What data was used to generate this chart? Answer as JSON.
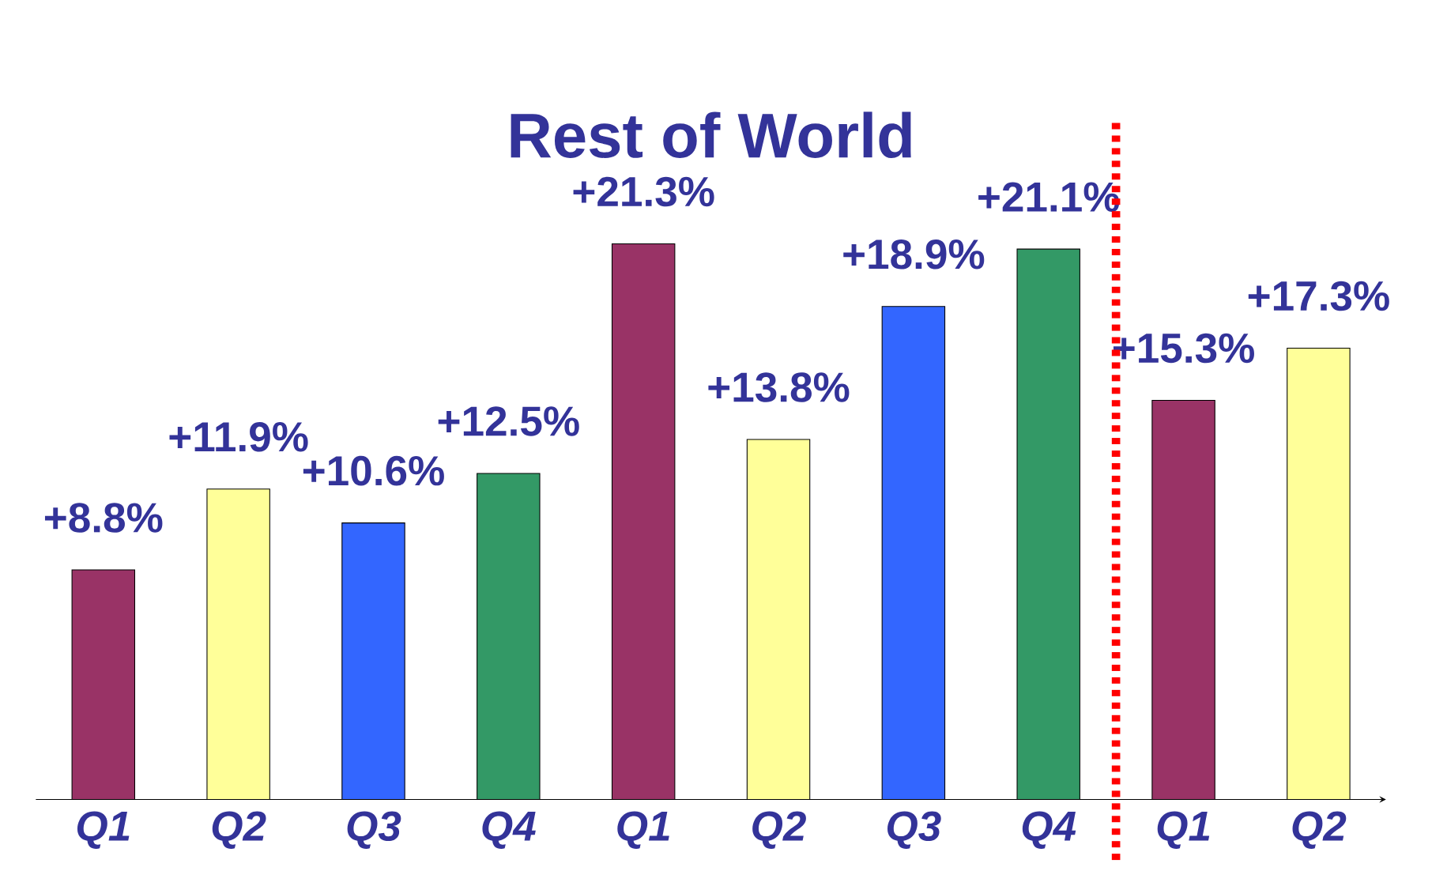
{
  "chart_data": {
    "type": "bar",
    "title": "Rest of World",
    "categories": [
      "Q1",
      "Q2",
      "Q3",
      "Q4",
      "Q1",
      "Q2",
      "Q3",
      "Q4",
      "Q1",
      "Q2"
    ],
    "values": [
      8.8,
      11.9,
      10.6,
      12.5,
      21.3,
      13.8,
      18.9,
      21.1,
      15.3,
      17.3
    ],
    "colors": [
      "#993366",
      "#ffff99",
      "#3366ff",
      "#339966",
      "#993366",
      "#ffff99",
      "#3366ff",
      "#339966",
      "#993366",
      "#ffff99"
    ],
    "value_labels": [
      "+8.8%",
      "+11.9%",
      "+10.6%",
      "+12.5%",
      "+21.3%",
      "+13.8%",
      "+18.9%",
      "+21.1%",
      "+15.3%",
      "+17.3%"
    ],
    "tick_labels": "x",
    "grid": false
  }
}
